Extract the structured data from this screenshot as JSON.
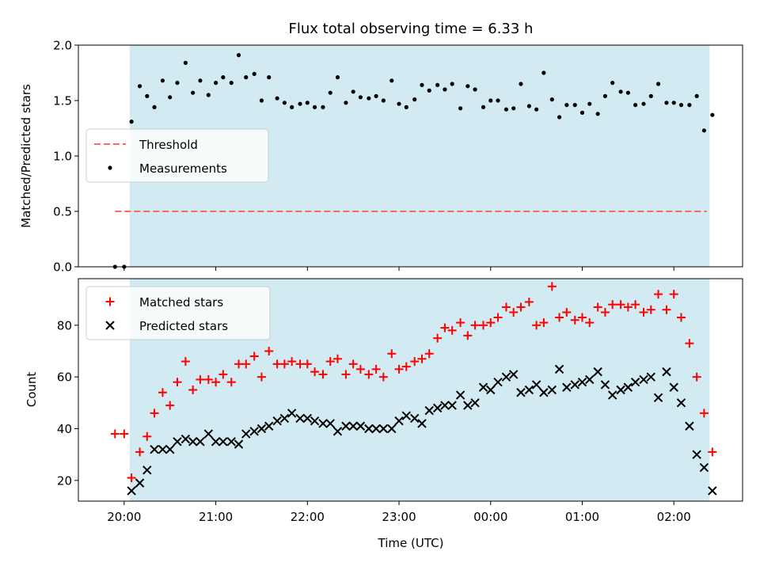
{
  "chart_data": [
    {
      "type": "scatter",
      "title": "Flux total observing time = 6.33 h",
      "ylabel": "Matched/Predicted stars",
      "xlabel": "",
      "x_unit": "hours relative to 00:00 UTC",
      "xlim": [
        -4.5,
        2.75
      ],
      "ylim": [
        0.0,
        2.0
      ],
      "y_ticks": [
        "0.0",
        "0.5",
        "1.0",
        "1.5",
        "2.0"
      ],
      "shaded_interval": [
        -3.94,
        2.39
      ],
      "shade_color": "#add8e6",
      "legend": {
        "location": "center-left",
        "entries": [
          "Threshold",
          "Measurements"
        ]
      },
      "threshold": {
        "name": "Threshold",
        "y": 0.5,
        "x_range": [
          -4.1,
          2.36
        ],
        "color": "#ff6666"
      },
      "series": [
        {
          "name": "Measurements",
          "color": "#000000",
          "marker": "dot",
          "x": [
            -4.1,
            -4.0,
            -3.92,
            -3.83,
            -3.75,
            -3.67,
            -3.58,
            -3.5,
            -3.42,
            -3.33,
            -3.25,
            -3.17,
            -3.08,
            -3.0,
            -2.92,
            -2.83,
            -2.75,
            -2.67,
            -2.58,
            -2.5,
            -2.42,
            -2.33,
            -2.25,
            -2.17,
            -2.08,
            -2.0,
            -1.92,
            -1.83,
            -1.75,
            -1.67,
            -1.58,
            -1.5,
            -1.42,
            -1.33,
            -1.25,
            -1.17,
            -1.08,
            -1.0,
            -0.92,
            -0.83,
            -0.75,
            -0.67,
            -0.58,
            -0.5,
            -0.42,
            -0.33,
            -0.25,
            -0.17,
            -0.08,
            0.0,
            0.08,
            0.17,
            0.25,
            0.33,
            0.42,
            0.5,
            0.58,
            0.67,
            0.75,
            0.83,
            0.92,
            1.0,
            1.08,
            1.17,
            1.25,
            1.33,
            1.42,
            1.5,
            1.58,
            1.67,
            1.75,
            1.83,
            1.92,
            2.0,
            2.08,
            2.17,
            2.25,
            2.33,
            2.42
          ],
          "y": [
            0.0,
            0.0,
            1.31,
            1.63,
            1.54,
            1.44,
            1.68,
            1.53,
            1.66,
            1.84,
            1.57,
            1.68,
            1.55,
            1.66,
            1.71,
            1.66,
            1.91,
            1.71,
            1.74,
            1.5,
            1.71,
            1.52,
            1.48,
            1.44,
            1.47,
            1.48,
            1.44,
            1.44,
            1.57,
            1.71,
            1.48,
            1.58,
            1.53,
            1.52,
            1.54,
            1.5,
            1.68,
            1.47,
            1.44,
            1.51,
            1.64,
            1.59,
            1.64,
            1.6,
            1.65,
            1.43,
            1.63,
            1.6,
            1.44,
            1.5,
            1.5,
            1.42,
            1.43,
            1.65,
            1.45,
            1.42,
            1.75,
            1.51,
            1.35,
            1.46,
            1.46,
            1.39,
            1.47,
            1.38,
            1.54,
            1.66,
            1.58,
            1.57,
            1.46,
            1.47,
            1.54,
            1.65,
            1.48,
            1.48,
            1.46,
            1.46,
            1.54,
            1.23,
            1.37
          ]
        }
      ]
    },
    {
      "type": "scatter",
      "title": "",
      "ylabel": "Count",
      "xlabel": "Time (UTC)",
      "x_unit": "hours relative to 00:00 UTC",
      "xlim": [
        -4.5,
        2.75
      ],
      "ylim": [
        12,
        98
      ],
      "y_ticks": [
        "20",
        "40",
        "60",
        "80"
      ],
      "x_ticks": [
        {
          "value": -4,
          "label": "20:00"
        },
        {
          "value": -3,
          "label": "21:00"
        },
        {
          "value": -2,
          "label": "22:00"
        },
        {
          "value": -1,
          "label": "23:00"
        },
        {
          "value": 0,
          "label": "00:00"
        },
        {
          "value": 1,
          "label": "01:00"
        },
        {
          "value": 2,
          "label": "02:00"
        }
      ],
      "shaded_interval": [
        -3.94,
        2.39
      ],
      "shade_color": "#add8e6",
      "legend": {
        "location": "upper-left",
        "entries": [
          "Matched stars",
          "Predicted stars"
        ]
      },
      "series": [
        {
          "name": "Matched stars",
          "color": "#ff0000",
          "marker": "plus",
          "x": [
            -4.1,
            -4.0,
            -3.92,
            -3.83,
            -3.75,
            -3.67,
            -3.58,
            -3.5,
            -3.42,
            -3.33,
            -3.25,
            -3.17,
            -3.08,
            -3.0,
            -2.92,
            -2.83,
            -2.75,
            -2.67,
            -2.58,
            -2.5,
            -2.42,
            -2.33,
            -2.25,
            -2.17,
            -2.08,
            -2.0,
            -1.92,
            -1.83,
            -1.75,
            -1.67,
            -1.58,
            -1.5,
            -1.42,
            -1.33,
            -1.25,
            -1.17,
            -1.08,
            -1.0,
            -0.92,
            -0.83,
            -0.75,
            -0.67,
            -0.58,
            -0.5,
            -0.42,
            -0.33,
            -0.25,
            -0.17,
            -0.08,
            0.0,
            0.08,
            0.17,
            0.25,
            0.33,
            0.42,
            0.5,
            0.58,
            0.67,
            0.75,
            0.83,
            0.92,
            1.0,
            1.08,
            1.17,
            1.25,
            1.33,
            1.42,
            1.5,
            1.58,
            1.67,
            1.75,
            1.83,
            1.92,
            2.0,
            2.08,
            2.17,
            2.25,
            2.33,
            2.42
          ],
          "y": [
            38,
            38,
            21,
            31,
            37,
            46,
            54,
            49,
            58,
            66,
            55,
            59,
            59,
            58,
            61,
            58,
            65,
            65,
            68,
            60,
            70,
            65,
            65,
            66,
            65,
            65,
            62,
            61,
            66,
            67,
            61,
            65,
            63,
            61,
            63,
            60,
            69,
            63,
            64,
            66,
            67,
            69,
            75,
            79,
            78,
            81,
            76,
            80,
            80,
            81,
            83,
            87,
            85,
            87,
            89,
            80,
            81,
            95,
            83,
            85,
            82,
            83,
            81,
            87,
            85,
            88,
            88,
            87,
            88,
            85,
            86,
            92,
            86,
            92,
            83,
            73,
            60,
            46,
            31
          ]
        },
        {
          "name": "Predicted stars",
          "color": "#000000",
          "marker": "x",
          "x": [
            -3.92,
            -3.83,
            -3.75,
            -3.67,
            -3.58,
            -3.5,
            -3.42,
            -3.33,
            -3.25,
            -3.17,
            -3.08,
            -3.0,
            -2.92,
            -2.83,
            -2.75,
            -2.67,
            -2.58,
            -2.5,
            -2.42,
            -2.33,
            -2.25,
            -2.17,
            -2.08,
            -2.0,
            -1.92,
            -1.83,
            -1.75,
            -1.67,
            -1.58,
            -1.5,
            -1.42,
            -1.33,
            -1.25,
            -1.17,
            -1.08,
            -1.0,
            -0.92,
            -0.83,
            -0.75,
            -0.67,
            -0.58,
            -0.5,
            -0.42,
            -0.33,
            -0.25,
            -0.17,
            -0.08,
            0.0,
            0.08,
            0.17,
            0.25,
            0.33,
            0.42,
            0.5,
            0.58,
            0.67,
            0.75,
            0.83,
            0.92,
            1.0,
            1.08,
            1.17,
            1.25,
            1.33,
            1.42,
            1.5,
            1.58,
            1.67,
            1.75,
            1.83,
            1.92,
            2.0,
            2.08,
            2.17,
            2.25,
            2.33,
            2.42
          ],
          "y": [
            16,
            19,
            24,
            32,
            32,
            32,
            35,
            36,
            35,
            35,
            38,
            35,
            35,
            35,
            34,
            38,
            39,
            40,
            41,
            43,
            44,
            46,
            44,
            44,
            43,
            42,
            42,
            39,
            41,
            41,
            41,
            40,
            40,
            40,
            40,
            43,
            45,
            44,
            42,
            47,
            48,
            49,
            49,
            53,
            49,
            50,
            56,
            55,
            58,
            60,
            61,
            54,
            55,
            57,
            54,
            55,
            63,
            56,
            57,
            58,
            59,
            62,
            57,
            53,
            55,
            56,
            58,
            59,
            60,
            52,
            62,
            56,
            50,
            41,
            30,
            25,
            16
          ]
        }
      ]
    }
  ]
}
